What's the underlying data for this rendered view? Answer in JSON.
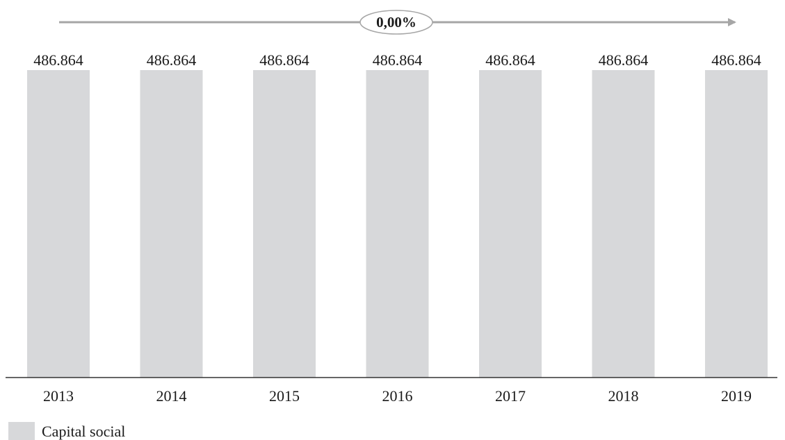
{
  "chart_data": {
    "type": "bar",
    "categories": [
      "2013",
      "2014",
      "2015",
      "2016",
      "2017",
      "2018",
      "2019"
    ],
    "series": [
      {
        "name": "Capital social",
        "values": [
          486864,
          486864,
          486864,
          486864,
          486864,
          486864,
          486864
        ],
        "value_labels": [
          "486.864",
          "486.864",
          "486.864",
          "486.864",
          "486.864",
          "486.864",
          "486.864"
        ]
      }
    ],
    "ylim": [
      0,
      486864
    ],
    "grid": false,
    "legend": "bottom-left",
    "annotation": "0,00%",
    "colors": {
      "bar": "#d7d8da",
      "arrow": "#a6a6a6",
      "axis": "#333333"
    }
  }
}
